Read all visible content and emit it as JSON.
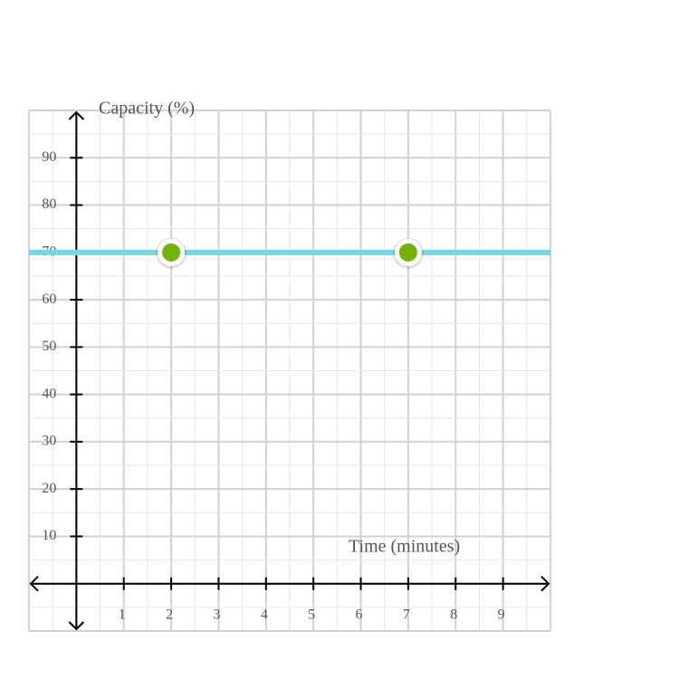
{
  "chart_data": {
    "type": "line",
    "y_label": "Capacity (%)",
    "x_label": "Time (minutes)",
    "xlim": [
      -1,
      10
    ],
    "ylim": [
      -10,
      100
    ],
    "xticks": [
      1,
      2,
      3,
      4,
      5,
      6,
      7,
      8,
      9
    ],
    "yticks": [
      10,
      20,
      30,
      40,
      50,
      60,
      70,
      80,
      90
    ],
    "grid": true,
    "series": [
      {
        "line_color": "#78d6e2",
        "color": "#71b307",
        "x": [
          2,
          7
        ],
        "values": [
          70,
          70
        ]
      }
    ]
  }
}
